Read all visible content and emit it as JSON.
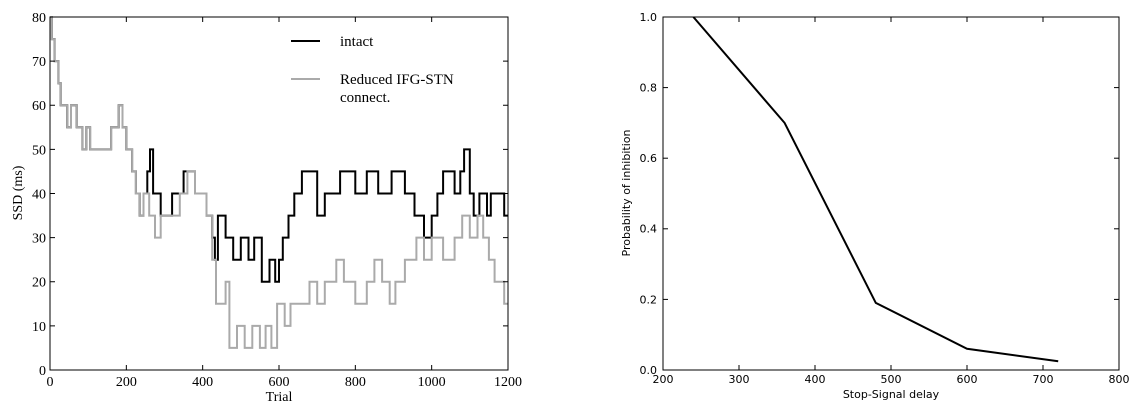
{
  "chart_data": [
    {
      "type": "line",
      "xlabel": "Trial",
      "ylabel": "SSD (ms)",
      "xlim": [
        0,
        1200
      ],
      "ylim": [
        0,
        80
      ],
      "xticks": [
        0,
        200,
        400,
        600,
        800,
        1000,
        1200
      ],
      "yticks": [
        0,
        10,
        20,
        30,
        40,
        50,
        60,
        70,
        80
      ],
      "legend_position": "top-right",
      "series": [
        {
          "name": "intact",
          "color": "#000000",
          "step": true,
          "points": [
            [
              0,
              80
            ],
            [
              5,
              75
            ],
            [
              12,
              70
            ],
            [
              22,
              65
            ],
            [
              28,
              60
            ],
            [
              45,
              55
            ],
            [
              55,
              60
            ],
            [
              70,
              55
            ],
            [
              85,
              50
            ],
            [
              95,
              55
            ],
            [
              105,
              50
            ],
            [
              160,
              55
            ],
            [
              180,
              60
            ],
            [
              190,
              55
            ],
            [
              200,
              50
            ],
            [
              215,
              45
            ],
            [
              225,
              40
            ],
            [
              235,
              35
            ],
            [
              245,
              40
            ],
            [
              255,
              45
            ],
            [
              262,
              50
            ],
            [
              270,
              40
            ],
            [
              290,
              35
            ],
            [
              320,
              40
            ],
            [
              350,
              45
            ],
            [
              380,
              40
            ],
            [
              410,
              35
            ],
            [
              425,
              30
            ],
            [
              432,
              25
            ],
            [
              440,
              35
            ],
            [
              460,
              30
            ],
            [
              480,
              25
            ],
            [
              500,
              30
            ],
            [
              520,
              25
            ],
            [
              535,
              30
            ],
            [
              555,
              20
            ],
            [
              575,
              25
            ],
            [
              590,
              20
            ],
            [
              600,
              25
            ],
            [
              610,
              30
            ],
            [
              625,
              35
            ],
            [
              640,
              40
            ],
            [
              660,
              45
            ],
            [
              700,
              35
            ],
            [
              720,
              40
            ],
            [
              760,
              45
            ],
            [
              800,
              40
            ],
            [
              830,
              45
            ],
            [
              860,
              40
            ],
            [
              895,
              45
            ],
            [
              930,
              40
            ],
            [
              955,
              35
            ],
            [
              980,
              30
            ],
            [
              1000,
              35
            ],
            [
              1015,
              40
            ],
            [
              1030,
              45
            ],
            [
              1060,
              40
            ],
            [
              1075,
              45
            ],
            [
              1085,
              50
            ],
            [
              1100,
              40
            ],
            [
              1110,
              35
            ],
            [
              1125,
              40
            ],
            [
              1145,
              35
            ],
            [
              1155,
              40
            ],
            [
              1175,
              40
            ],
            [
              1190,
              35
            ],
            [
              1200,
              35
            ]
          ]
        },
        {
          "name": "Reduced IFG-STN connect.",
          "color": "#aaaaaa",
          "step": true,
          "points": [
            [
              0,
              80
            ],
            [
              5,
              75
            ],
            [
              12,
              70
            ],
            [
              22,
              65
            ],
            [
              28,
              60
            ],
            [
              45,
              55
            ],
            [
              55,
              60
            ],
            [
              70,
              55
            ],
            [
              85,
              50
            ],
            [
              95,
              55
            ],
            [
              105,
              50
            ],
            [
              160,
              55
            ],
            [
              180,
              60
            ],
            [
              190,
              55
            ],
            [
              200,
              50
            ],
            [
              215,
              45
            ],
            [
              225,
              40
            ],
            [
              235,
              35
            ],
            [
              245,
              40
            ],
            [
              260,
              35
            ],
            [
              275,
              30
            ],
            [
              290,
              35
            ],
            [
              320,
              35
            ],
            [
              340,
              40
            ],
            [
              360,
              45
            ],
            [
              380,
              40
            ],
            [
              410,
              35
            ],
            [
              425,
              25
            ],
            [
              435,
              15
            ],
            [
              450,
              15
            ],
            [
              460,
              20
            ],
            [
              470,
              5
            ],
            [
              490,
              10
            ],
            [
              510,
              5
            ],
            [
              530,
              10
            ],
            [
              550,
              5
            ],
            [
              565,
              10
            ],
            [
              580,
              5
            ],
            [
              595,
              15
            ],
            [
              615,
              10
            ],
            [
              630,
              15
            ],
            [
              680,
              20
            ],
            [
              700,
              15
            ],
            [
              720,
              20
            ],
            [
              750,
              25
            ],
            [
              770,
              20
            ],
            [
              800,
              15
            ],
            [
              830,
              20
            ],
            [
              850,
              25
            ],
            [
              870,
              20
            ],
            [
              890,
              15
            ],
            [
              905,
              20
            ],
            [
              930,
              25
            ],
            [
              960,
              30
            ],
            [
              980,
              25
            ],
            [
              1000,
              30
            ],
            [
              1030,
              25
            ],
            [
              1060,
              30
            ],
            [
              1080,
              35
            ],
            [
              1100,
              30
            ],
            [
              1120,
              35
            ],
            [
              1135,
              30
            ],
            [
              1150,
              25
            ],
            [
              1165,
              20
            ],
            [
              1190,
              15
            ],
            [
              1200,
              15
            ]
          ]
        }
      ]
    },
    {
      "type": "line",
      "xlabel": "Stop-Signal delay",
      "ylabel": "Probability of inhibition",
      "xlim": [
        200,
        800
      ],
      "ylim": [
        0,
        1
      ],
      "xticks": [
        200,
        300,
        400,
        500,
        600,
        700,
        800
      ],
      "yticks": [
        0.0,
        0.2,
        0.4,
        0.6,
        0.8,
        1.0
      ],
      "series": [
        {
          "color": "#000000",
          "x": [
            240,
            360,
            480,
            600,
            720
          ],
          "y": [
            1.0,
            0.7,
            0.19,
            0.06,
            0.025
          ]
        }
      ]
    }
  ]
}
